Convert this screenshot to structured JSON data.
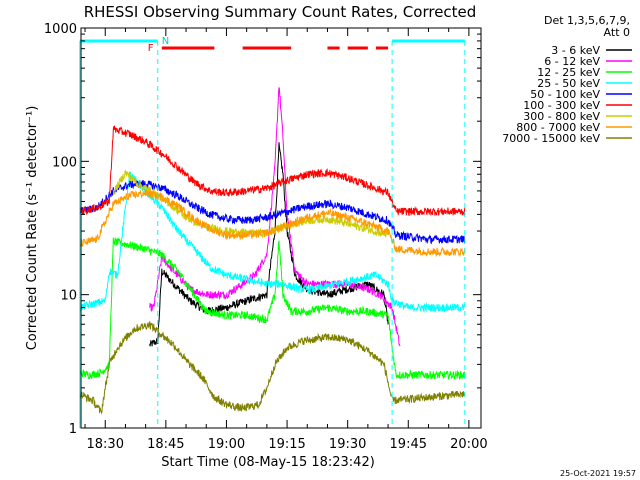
{
  "chart_data": {
    "type": "line",
    "title": "RHESSI Observing Summary Count Rates, Corrected",
    "xlabel": "Start Time (08-May-15 18:23:42)",
    "ylabel": "Corrected Count Rate (s⁻¹ detector⁻¹)",
    "y_scale": "log",
    "ylim": [
      1,
      1000
    ],
    "xlim_minutes": [
      18.4,
      20.05
    ],
    "x_ticks": [
      "18:30",
      "18:45",
      "19:00",
      "19:15",
      "19:30",
      "19:45",
      "20:00"
    ],
    "y_ticks": [
      "1",
      "10",
      "100",
      "1000"
    ],
    "footer_date": "25-Oct-2021 19:57",
    "legend_header": [
      "Det 1,3,5,6,7,9,",
      "Att 0"
    ],
    "flag_labels": {
      "F": "F",
      "N": "N"
    },
    "night_intervals": [
      [
        "18:23:42",
        "18:43:00"
      ],
      [
        "19:41:00",
        "19:59:00"
      ]
    ],
    "flare_intervals": [
      [
        "18:44:00",
        "18:57:00"
      ],
      [
        "19:04:00",
        "19:16:00"
      ],
      [
        "19:25:00",
        "19:28:00"
      ],
      [
        "19:30:00",
        "19:35:00"
      ],
      [
        "19:37:00",
        "19:40:00"
      ]
    ],
    "series": [
      {
        "name": "3 - 6 keV",
        "color": "#000000",
        "points": [
          [
            "18:41",
            4.2
          ],
          [
            "18:43",
            4.5
          ],
          [
            "18:44",
            15
          ],
          [
            "18:47",
            12
          ],
          [
            "18:51",
            9
          ],
          [
            "18:55",
            7.5
          ],
          [
            "19:00",
            8
          ],
          [
            "19:05",
            9
          ],
          [
            "19:10",
            10
          ],
          [
            "19:12",
            30
          ],
          [
            "19:13",
            130
          ],
          [
            "19:14",
            80
          ],
          [
            "19:15",
            30
          ],
          [
            "19:17",
            14
          ],
          [
            "19:20",
            11
          ],
          [
            "19:25",
            10
          ],
          [
            "19:30",
            11
          ],
          [
            "19:35",
            12
          ],
          [
            "19:39",
            10
          ],
          [
            "19:40",
            6
          ]
        ]
      },
      {
        "name": "6 - 12 keV",
        "color": "#ff00ff",
        "points": [
          [
            "18:41",
            8
          ],
          [
            "18:42",
            8
          ],
          [
            "18:44",
            19
          ],
          [
            "18:47",
            15
          ],
          [
            "18:51",
            11
          ],
          [
            "18:55",
            10
          ],
          [
            "19:00",
            10
          ],
          [
            "19:04",
            12
          ],
          [
            "19:07",
            14
          ],
          [
            "19:10",
            20
          ],
          [
            "19:12",
            90
          ],
          [
            "19:13",
            380
          ],
          [
            "19:14",
            150
          ],
          [
            "19:15",
            40
          ],
          [
            "19:17",
            15
          ],
          [
            "19:20",
            12
          ],
          [
            "19:25",
            12
          ],
          [
            "19:30",
            12
          ],
          [
            "19:35",
            11
          ],
          [
            "19:38",
            10
          ],
          [
            "19:41",
            8
          ],
          [
            "19:43",
            4
          ]
        ]
      },
      {
        "name": "12 - 25 keV",
        "color": "#00ff00",
        "points": [
          [
            "18:23:42",
            2.6
          ],
          [
            "18:26",
            2.5
          ],
          [
            "18:29",
            2.6
          ],
          [
            "18:31",
            3
          ],
          [
            "18:32",
            25
          ],
          [
            "18:35",
            24
          ],
          [
            "18:40",
            22
          ],
          [
            "18:44",
            20
          ],
          [
            "18:48",
            15
          ],
          [
            "18:52",
            10
          ],
          [
            "18:55",
            7.5
          ],
          [
            "19:00",
            7
          ],
          [
            "19:05",
            7
          ],
          [
            "19:10",
            6.5
          ],
          [
            "19:12",
            10
          ],
          [
            "19:13",
            25
          ],
          [
            "19:14",
            10
          ],
          [
            "19:16",
            7.5
          ],
          [
            "19:20",
            7.5
          ],
          [
            "19:25",
            8
          ],
          [
            "19:30",
            7.5
          ],
          [
            "19:35",
            7.5
          ],
          [
            "19:40",
            7
          ],
          [
            "19:41",
            4
          ],
          [
            "19:42",
            2.5
          ],
          [
            "19:50",
            2.5
          ],
          [
            "19:59",
            2.5
          ]
        ]
      },
      {
        "name": "25 - 50 keV",
        "color": "#00ffff",
        "points": [
          [
            "18:23:42",
            8
          ],
          [
            "18:27",
            8.5
          ],
          [
            "18:30",
            9
          ],
          [
            "18:31",
            15
          ],
          [
            "18:33",
            14
          ],
          [
            "18:36",
            80
          ],
          [
            "18:40",
            60
          ],
          [
            "18:44",
            45
          ],
          [
            "18:48",
            30
          ],
          [
            "18:52",
            22
          ],
          [
            "18:56",
            16
          ],
          [
            "19:00",
            14
          ],
          [
            "19:05",
            13
          ],
          [
            "19:10",
            12
          ],
          [
            "19:14",
            12
          ],
          [
            "19:18",
            11
          ],
          [
            "19:22",
            11
          ],
          [
            "19:27",
            12
          ],
          [
            "19:32",
            13
          ],
          [
            "19:37",
            14
          ],
          [
            "19:40",
            12
          ],
          [
            "19:41",
            9
          ],
          [
            "19:45",
            8
          ],
          [
            "19:59",
            8
          ]
        ]
      },
      {
        "name": "50 - 100 keV",
        "color": "#0000ff",
        "points": [
          [
            "18:23:42",
            42
          ],
          [
            "18:28",
            45
          ],
          [
            "18:32",
            60
          ],
          [
            "18:36",
            67
          ],
          [
            "18:40",
            68
          ],
          [
            "18:44",
            63
          ],
          [
            "18:48",
            55
          ],
          [
            "18:52",
            46
          ],
          [
            "18:56",
            40
          ],
          [
            "19:00",
            37
          ],
          [
            "19:05",
            36
          ],
          [
            "19:10",
            38
          ],
          [
            "19:15",
            42
          ],
          [
            "19:20",
            46
          ],
          [
            "19:25",
            48
          ],
          [
            "19:30",
            45
          ],
          [
            "19:35",
            40
          ],
          [
            "19:40",
            36
          ],
          [
            "19:42",
            28
          ],
          [
            "19:50",
            26
          ],
          [
            "19:59",
            26
          ]
        ]
      },
      {
        "name": "100 - 300 keV",
        "color": "#ff0000",
        "points": [
          [
            "18:23:42",
            42
          ],
          [
            "18:28",
            45
          ],
          [
            "18:31",
            50
          ],
          [
            "18:32",
            175
          ],
          [
            "18:36",
            160
          ],
          [
            "18:40",
            140
          ],
          [
            "18:44",
            115
          ],
          [
            "18:48",
            90
          ],
          [
            "18:52",
            70
          ],
          [
            "18:56",
            60
          ],
          [
            "19:00",
            58
          ],
          [
            "19:05",
            60
          ],
          [
            "19:10",
            63
          ],
          [
            "19:15",
            72
          ],
          [
            "19:20",
            80
          ],
          [
            "19:25",
            82
          ],
          [
            "19:30",
            75
          ],
          [
            "19:35",
            66
          ],
          [
            "19:40",
            58
          ],
          [
            "19:42",
            42
          ],
          [
            "19:50",
            42
          ],
          [
            "19:59",
            42
          ]
        ]
      },
      {
        "name": "300 - 800 keV",
        "color": "#cccc00",
        "points": [
          [
            "18:32",
            58
          ],
          [
            "18:35",
            82
          ],
          [
            "18:38",
            68
          ],
          [
            "18:42",
            58
          ],
          [
            "18:46",
            48
          ],
          [
            "18:50",
            38
          ],
          [
            "18:55",
            32
          ],
          [
            "19:00",
            30
          ],
          [
            "19:05",
            29
          ],
          [
            "19:10",
            29
          ],
          [
            "19:15",
            33
          ],
          [
            "19:20",
            36
          ],
          [
            "19:25",
            37
          ],
          [
            "19:30",
            34
          ],
          [
            "19:35",
            31
          ],
          [
            "19:40",
            28
          ]
        ]
      },
      {
        "name": "800 - 7000 keV",
        "color": "#ff9900",
        "points": [
          [
            "18:23:42",
            24
          ],
          [
            "18:28",
            26
          ],
          [
            "18:32",
            48
          ],
          [
            "18:36",
            55
          ],
          [
            "18:40",
            58
          ],
          [
            "18:44",
            54
          ],
          [
            "18:48",
            46
          ],
          [
            "18:52",
            37
          ],
          [
            "18:56",
            31
          ],
          [
            "19:00",
            28
          ],
          [
            "19:05",
            28
          ],
          [
            "19:10",
            29
          ],
          [
            "19:15",
            33
          ],
          [
            "19:20",
            38
          ],
          [
            "19:25",
            41
          ],
          [
            "19:30",
            38
          ],
          [
            "19:35",
            34
          ],
          [
            "19:40",
            30
          ],
          [
            "19:42",
            22
          ],
          [
            "19:50",
            21
          ],
          [
            "19:59",
            21
          ]
        ]
      },
      {
        "name": "7000 - 15000 keV",
        "color": "#808000",
        "points": [
          [
            "18:23:42",
            1.8
          ],
          [
            "18:27",
            1.6
          ],
          [
            "18:29",
            1.3
          ],
          [
            "18:31",
            3
          ],
          [
            "18:33",
            4
          ],
          [
            "18:37",
            5.5
          ],
          [
            "18:41",
            6
          ],
          [
            "18:44",
            5
          ],
          [
            "18:47",
            4.2
          ],
          [
            "18:50",
            3.2
          ],
          [
            "18:54",
            2.4
          ],
          [
            "18:57",
            1.7
          ],
          [
            "19:00",
            1.5
          ],
          [
            "19:04",
            1.4
          ],
          [
            "19:08",
            1.5
          ],
          [
            "19:10",
            2
          ],
          [
            "19:12",
            3
          ],
          [
            "19:15",
            4
          ],
          [
            "19:19",
            4.5
          ],
          [
            "19:25",
            4.8
          ],
          [
            "19:30",
            4.6
          ],
          [
            "19:35",
            3.8
          ],
          [
            "19:39",
            3
          ],
          [
            "19:41",
            1.6
          ],
          [
            "19:50",
            1.7
          ],
          [
            "19:59",
            1.8
          ]
        ]
      }
    ]
  }
}
